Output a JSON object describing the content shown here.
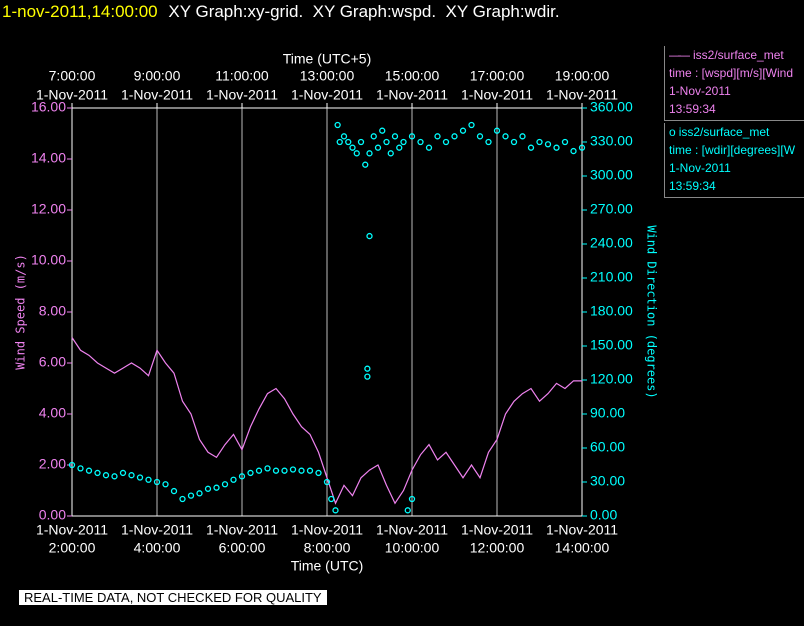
{
  "header": {
    "timestamp": "1-nov-2011,14:00:00",
    "title": "XY Graph:xy-grid.  XY Graph:wspd.  XY Graph:wdir."
  },
  "footer": {
    "notice": "REAL-TIME DATA, NOT CHECKED FOR QUALITY"
  },
  "legend": {
    "entries": [
      {
        "symbol": "——",
        "lines": [
          "time : [wspd][m/s][Wind",
          "1-Nov-2011",
          "13:59:34"
        ]
      },
      {
        "symbol": "o",
        "lines": [
          "time : [wdir][degrees][W",
          "1-Nov-2011",
          "13:59:34"
        ]
      }
    ]
  },
  "chart_data": {
    "type": "line",
    "xlabel": "Time (UTC)",
    "x2label": "Time (UTC+5)",
    "ylabel": "Wind Speed (m/s)",
    "y2label": "Wind Direction (degrees)",
    "xlim": [
      2,
      14
    ],
    "xticks": [
      {
        "value": 2,
        "label": "2:00:00",
        "date": "1-Nov-2011"
      },
      {
        "value": 4,
        "label": "4:00:00",
        "date": "1-Nov-2011"
      },
      {
        "value": 6,
        "label": "6:00:00",
        "date": "1-Nov-2011"
      },
      {
        "value": 8,
        "label": "8:00:00",
        "date": "1-Nov-2011"
      },
      {
        "value": 10,
        "label": "10:00:00",
        "date": "1-Nov-2011"
      },
      {
        "value": 12,
        "label": "12:00:00",
        "date": "1-Nov-2011"
      },
      {
        "value": 14,
        "label": "14:00:00",
        "date": "1-Nov-2011"
      }
    ],
    "x2ticks": [
      {
        "value": 2,
        "label": "7:00:00",
        "date": "1-Nov-2011"
      },
      {
        "value": 4,
        "label": "9:00:00",
        "date": "1-Nov-2011"
      },
      {
        "value": 6,
        "label": "11:00:00",
        "date": "1-Nov-2011"
      },
      {
        "value": 8,
        "label": "13:00:00",
        "date": "1-Nov-2011"
      },
      {
        "value": 10,
        "label": "15:00:00",
        "date": "1-Nov-2011"
      },
      {
        "value": 12,
        "label": "17:00:00",
        "date": "1-Nov-2011"
      },
      {
        "value": 14,
        "label": "19:00:00",
        "date": "1-Nov-2011"
      }
    ],
    "ylim": [
      0,
      16
    ],
    "yticks": [
      {
        "value": 0,
        "label": "0.00"
      },
      {
        "value": 2,
        "label": "2.00"
      },
      {
        "value": 4,
        "label": "4.00"
      },
      {
        "value": 6,
        "label": "6.00"
      },
      {
        "value": 8,
        "label": "8.00"
      },
      {
        "value": 10,
        "label": "10.00"
      },
      {
        "value": 12,
        "label": "12.00"
      },
      {
        "value": 14,
        "label": "14.00"
      },
      {
        "value": 16,
        "label": "16.00"
      }
    ],
    "y2lim": [
      0,
      360
    ],
    "y2ticks": [
      {
        "value": 0,
        "label": "0.00"
      },
      {
        "value": 30,
        "label": "30.00"
      },
      {
        "value": 60,
        "label": "60.00"
      },
      {
        "value": 90,
        "label": "90.00"
      },
      {
        "value": 120,
        "label": "120.00"
      },
      {
        "value": 150,
        "label": "150.00"
      },
      {
        "value": 180,
        "label": "180.00"
      },
      {
        "value": 210,
        "label": "210.00"
      },
      {
        "value": 240,
        "label": "240.00"
      },
      {
        "value": 270,
        "label": "270.00"
      },
      {
        "value": 300,
        "label": "300.00"
      },
      {
        "value": 330,
        "label": "330.00"
      },
      {
        "value": 360,
        "label": "360.00"
      }
    ],
    "grid": true,
    "series": [
      {
        "name": "iss2/surface_met",
        "type": "line",
        "axis": "y",
        "color": "#ee82ee",
        "x": [
          2.0,
          2.2,
          2.4,
          2.6,
          2.8,
          3.0,
          3.2,
          3.4,
          3.6,
          3.8,
          4.0,
          4.2,
          4.4,
          4.6,
          4.8,
          5.0,
          5.2,
          5.4,
          5.6,
          5.8,
          6.0,
          6.2,
          6.4,
          6.6,
          6.8,
          7.0,
          7.2,
          7.4,
          7.6,
          7.8,
          8.0,
          8.2,
          8.4,
          8.6,
          8.8,
          9.0,
          9.2,
          9.4,
          9.6,
          9.8,
          10.0,
          10.2,
          10.4,
          10.6,
          10.8,
          11.0,
          11.2,
          11.4,
          11.6,
          11.8,
          12.0,
          12.2,
          12.4,
          12.6,
          12.8,
          13.0,
          13.2,
          13.4,
          13.6,
          13.8,
          14.0
        ],
        "values": [
          7.0,
          6.5,
          6.3,
          6.0,
          5.8,
          5.6,
          5.8,
          6.0,
          5.8,
          5.5,
          6.5,
          6.0,
          5.6,
          4.5,
          4.0,
          3.0,
          2.5,
          2.3,
          2.8,
          3.2,
          2.6,
          3.5,
          4.2,
          4.8,
          5.0,
          4.6,
          4.0,
          3.5,
          3.2,
          2.5,
          1.5,
          0.5,
          1.2,
          0.8,
          1.5,
          1.8,
          2.0,
          1.2,
          0.5,
          1.0,
          1.8,
          2.4,
          2.8,
          2.2,
          2.5,
          2.0,
          1.5,
          2.0,
          1.5,
          2.5,
          3.0,
          4.0,
          4.5,
          4.8,
          5.0,
          4.5,
          4.8,
          5.2,
          5.0,
          5.3,
          5.3
        ]
      },
      {
        "name": "iss2/surface_met",
        "type": "scatter",
        "axis": "y2",
        "color": "#00ffff",
        "x": [
          2.0,
          2.2,
          2.4,
          2.6,
          2.8,
          3.0,
          3.2,
          3.4,
          3.6,
          3.8,
          4.0,
          4.2,
          4.4,
          4.6,
          4.8,
          5.0,
          5.2,
          5.4,
          5.6,
          5.8,
          6.0,
          6.2,
          6.4,
          6.6,
          6.8,
          7.0,
          7.2,
          7.4,
          7.6,
          7.8,
          8.0,
          8.1,
          8.2,
          8.25,
          8.3,
          8.4,
          8.5,
          8.6,
          8.7,
          8.8,
          8.9,
          8.95,
          8.95,
          9.0,
          9.0,
          9.1,
          9.2,
          9.3,
          9.4,
          9.5,
          9.6,
          9.7,
          9.8,
          9.9,
          10.0,
          10.0,
          10.2,
          10.4,
          10.6,
          10.8,
          11.0,
          11.2,
          11.4,
          11.6,
          11.8,
          12.0,
          12.2,
          12.4,
          12.6,
          12.8,
          13.0,
          13.2,
          13.4,
          13.6,
          13.8,
          14.0
        ],
        "values": [
          45,
          42,
          40,
          38,
          36,
          35,
          38,
          36,
          34,
          32,
          30,
          28,
          22,
          15,
          18,
          20,
          24,
          25,
          28,
          32,
          35,
          38,
          40,
          42,
          40,
          40,
          41,
          40,
          40,
          38,
          30,
          15,
          5,
          345,
          330,
          335,
          330,
          325,
          320,
          330,
          310,
          130,
          123,
          247,
          320,
          335,
          325,
          340,
          330,
          320,
          335,
          325,
          330,
          5,
          335,
          15,
          330,
          325,
          335,
          330,
          335,
          340,
          345,
          335,
          330,
          340,
          335,
          330,
          335,
          325,
          330,
          328,
          325,
          330,
          322,
          325
        ]
      }
    ]
  }
}
